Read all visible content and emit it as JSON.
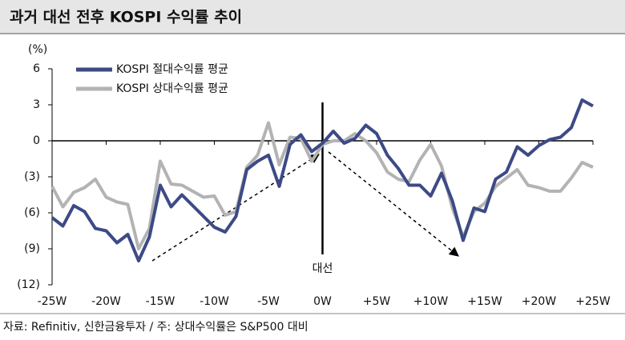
{
  "chart_data": {
    "type": "line",
    "title": "과거 대선 전후 KOSPI 수익률 추이",
    "y_unit": "(%)",
    "source": "자료: Refinitiv, 신한금융투자 / 주: 상대수익률은 S&P500 대비",
    "annotation": {
      "text": "대선",
      "x": 0
    },
    "x": [
      -25,
      -24,
      -23,
      -22,
      -21,
      -20,
      -19,
      -18,
      -17,
      -16,
      -15,
      -14,
      -13,
      -12,
      -11,
      -10,
      -9,
      -8,
      -7,
      -6,
      -5,
      -4,
      -3,
      -2,
      -1,
      0,
      1,
      2,
      3,
      4,
      5,
      6,
      7,
      8,
      9,
      10,
      11,
      12,
      13,
      14,
      15,
      16,
      17,
      18,
      19,
      20,
      21,
      22,
      23,
      24,
      25
    ],
    "series": [
      {
        "name": "KOSPI 절대수익률 평균",
        "color": "#3d4a86",
        "values": [
          -6.4,
          -7.1,
          -5.4,
          -5.9,
          -7.3,
          -7.5,
          -8.5,
          -7.8,
          -10.0,
          -8.0,
          -3.7,
          -5.5,
          -4.5,
          -5.4,
          -6.3,
          -7.2,
          -7.6,
          -6.3,
          -2.4,
          -1.7,
          -1.2,
          -3.8,
          -0.3,
          0.5,
          -0.9,
          -0.2,
          0.8,
          -0.2,
          0.2,
          1.3,
          0.6,
          -1.2,
          -2.3,
          -3.7,
          -3.7,
          -4.6,
          -2.7,
          -5.0,
          -8.3,
          -5.6,
          -5.9,
          -3.2,
          -2.6,
          -0.5,
          -1.2,
          -0.4,
          0.1,
          0.3,
          1.1,
          3.4,
          2.9
        ]
      },
      {
        "name": "KOSPI 상대수익률 평균",
        "color": "#b3b3b3",
        "values": [
          -3.8,
          -5.5,
          -4.3,
          -3.9,
          -3.2,
          -4.7,
          -5.1,
          -5.3,
          -9.0,
          -7.3,
          -1.7,
          -3.6,
          -3.7,
          -4.2,
          -4.7,
          -4.6,
          -6.2,
          -5.9,
          -2.2,
          -1.2,
          1.5,
          -2.0,
          0.3,
          0.2,
          -1.7,
          -0.3,
          0.0,
          0.0,
          0.6,
          0.0,
          -1.0,
          -2.6,
          -3.2,
          -3.4,
          -1.6,
          -0.3,
          -2.1,
          -5.6,
          -8.0,
          -5.9,
          -5.2,
          -3.8,
          -3.1,
          -2.4,
          -3.7,
          -3.9,
          -4.2,
          -4.2,
          -3.1,
          -1.8,
          -2.2
        ]
      }
    ],
    "xlim": [
      -25,
      25
    ],
    "xticks": [
      {
        "value": -25,
        "label": "-25W"
      },
      {
        "value": -20,
        "label": "-20W"
      },
      {
        "value": -15,
        "label": "-15W"
      },
      {
        "value": -10,
        "label": "-10W"
      },
      {
        "value": -5,
        "label": "-5W"
      },
      {
        "value": 0,
        "label": "0W"
      },
      {
        "value": 5,
        "label": "+5W"
      },
      {
        "value": 10,
        "label": "+10W"
      },
      {
        "value": 15,
        "label": "+15W"
      },
      {
        "value": 20,
        "label": "+20W"
      },
      {
        "value": 25,
        "label": "+25W"
      }
    ],
    "ylim": [
      -12,
      6
    ],
    "yticks": [
      6,
      3,
      0,
      {
        "value": -3,
        "label": "(3)"
      },
      {
        "value": -6,
        "label": "(6)"
      },
      {
        "value": -9,
        "label": "(9)"
      },
      {
        "value": -12,
        "label": "(12)"
      }
    ],
    "legend": "upper left"
  }
}
